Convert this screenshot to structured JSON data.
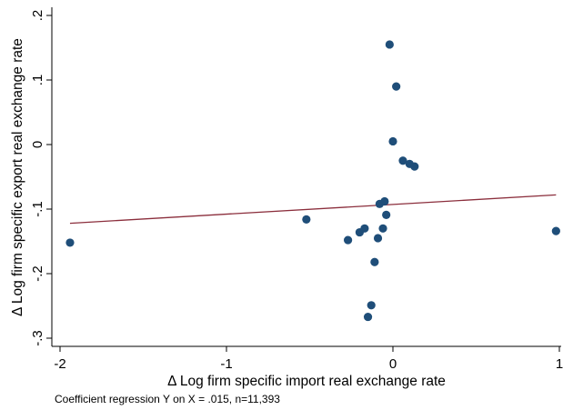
{
  "chart_data": {
    "type": "scatter",
    "title": "",
    "xlabel": "Δ Log firm specific import real exchange rate",
    "ylabel": "Δ Log firm specific export real exchange rate",
    "note": "Coefficient regression Y on X = .015, n=11,393",
    "xlim": [
      -2.0,
      1.0
    ],
    "ylim": [
      -0.3,
      0.2
    ],
    "x_ticks": [
      {
        "value": -2,
        "label": "-2"
      },
      {
        "value": -1,
        "label": "-1"
      },
      {
        "value": 0,
        "label": "0"
      },
      {
        "value": 1,
        "label": "1"
      }
    ],
    "y_ticks": [
      {
        "value": -0.3,
        "label": "-.3"
      },
      {
        "value": -0.2,
        "label": "-.2"
      },
      {
        "value": -0.1,
        "label": "-.1"
      },
      {
        "value": 0,
        "label": "0"
      },
      {
        "value": 0.1,
        "label": ".1"
      },
      {
        "value": 0.2,
        "label": ".2"
      }
    ],
    "grid": false,
    "marker_color": "#1f4e79",
    "fit_line_color": "#8b2e3c",
    "points": [
      {
        "x": -1.94,
        "y": -0.152
      },
      {
        "x": -0.52,
        "y": -0.116
      },
      {
        "x": -0.27,
        "y": -0.148
      },
      {
        "x": -0.2,
        "y": -0.136
      },
      {
        "x": -0.17,
        "y": -0.13
      },
      {
        "x": -0.13,
        "y": -0.249
      },
      {
        "x": -0.15,
        "y": -0.267
      },
      {
        "x": -0.11,
        "y": -0.182
      },
      {
        "x": -0.09,
        "y": -0.145
      },
      {
        "x": -0.08,
        "y": -0.092
      },
      {
        "x": -0.06,
        "y": -0.13
      },
      {
        "x": -0.05,
        "y": -0.088
      },
      {
        "x": -0.04,
        "y": -0.109
      },
      {
        "x": -0.02,
        "y": 0.155
      },
      {
        "x": 0.0,
        "y": 0.005
      },
      {
        "x": 0.02,
        "y": 0.09
      },
      {
        "x": 0.06,
        "y": -0.025
      },
      {
        "x": 0.1,
        "y": -0.03
      },
      {
        "x": 0.13,
        "y": -0.034
      },
      {
        "x": 0.98,
        "y": -0.134
      }
    ],
    "fit_line": [
      {
        "x": -1.94,
        "y": -0.122
      },
      {
        "x": 0.98,
        "y": -0.078
      }
    ]
  }
}
